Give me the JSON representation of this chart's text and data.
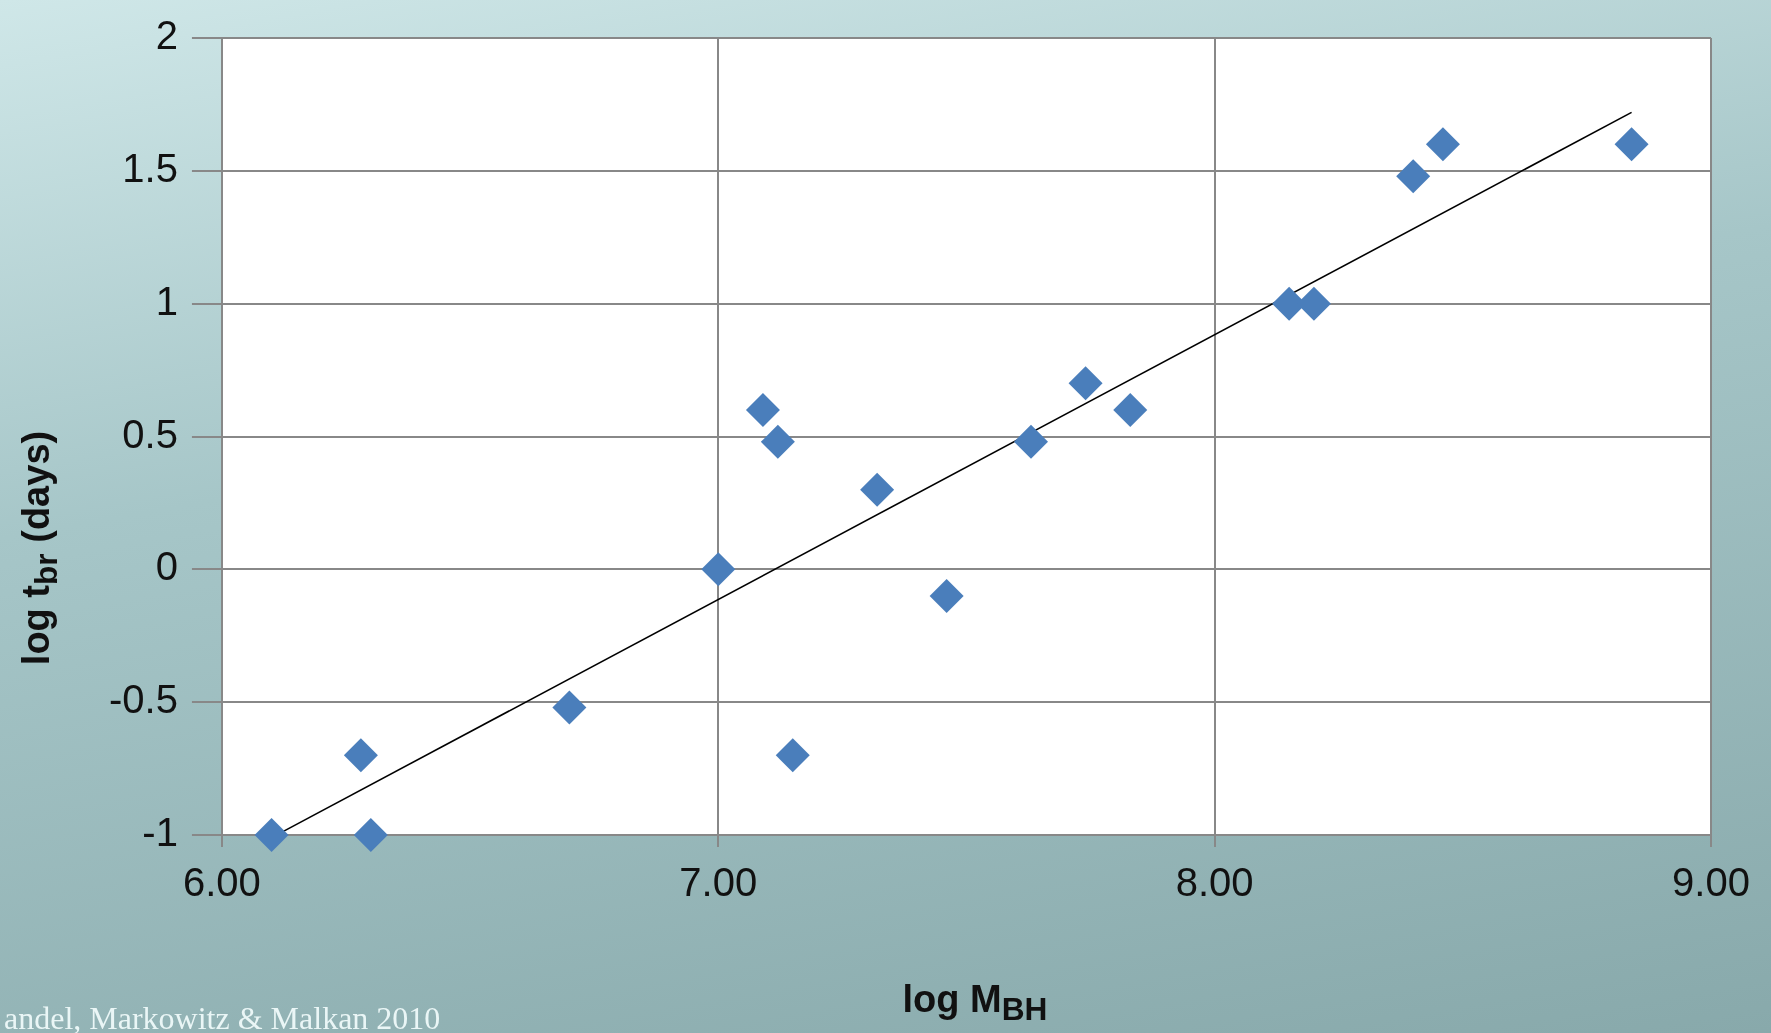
{
  "chart_data": {
    "type": "scatter",
    "xlabel": "log M$_{BH}$",
    "ylabel": "log t$_{br}$ (days)",
    "annotations": [
      "andel, Markowitz & Malkan 2010"
    ],
    "xlim": [
      6,
      9
    ],
    "xticks": [
      {
        "value": 6,
        "label": "6.00"
      },
      {
        "value": 7,
        "label": "7.00"
      },
      {
        "value": 8,
        "label": "8.00"
      },
      {
        "value": 9,
        "label": "9.00"
      }
    ],
    "ylim": [
      -1,
      2
    ],
    "yticks": [
      -1,
      -0.5,
      0,
      0.5,
      1,
      1.5,
      2
    ],
    "grid": true,
    "legend": false,
    "marker": "diamond",
    "series": [
      {
        "color": "#4a7ebb",
        "x": [
          6.1,
          6.28,
          6.3,
          6.7,
          7.0,
          7.09,
          7.12,
          7.15,
          7.32,
          7.46,
          7.63,
          7.74,
          7.83,
          8.15,
          8.2,
          8.4,
          8.46,
          8.84
        ],
        "values": [
          -1,
          -0.7,
          -1,
          -0.52,
          0,
          0.6,
          0.48,
          -0.7,
          0.3,
          -0.1,
          0.48,
          0.7,
          0.6,
          1,
          1,
          1.48,
          1.6,
          1.6
        ]
      },
      {
        "type": "line",
        "color": "#000000",
        "x": [
          6.12,
          8.84
        ],
        "values": [
          -0.99,
          1.72
        ],
        "marker": "none",
        "line_style": "solid"
      }
    ]
  }
}
